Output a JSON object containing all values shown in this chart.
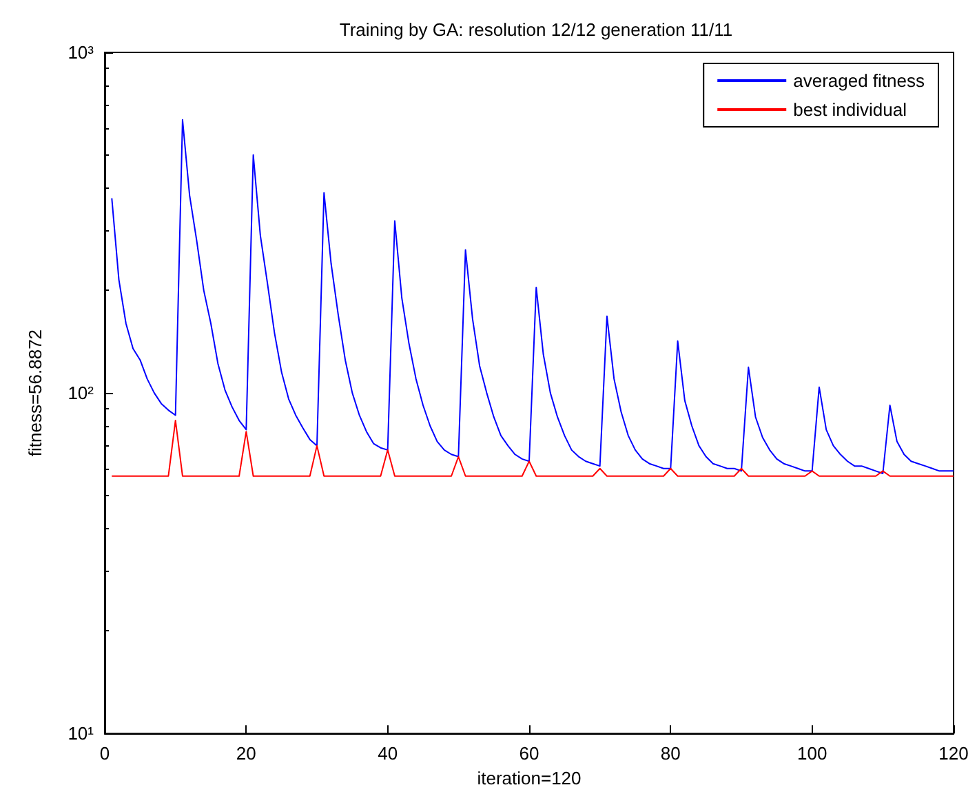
{
  "chart_data": {
    "type": "line",
    "title": "Training by GA: resolution 12/12 generation 11/11",
    "xlabel": "iteration=120",
    "ylabel": "fitness=56.8872",
    "x": [
      1,
      2,
      3,
      4,
      5,
      6,
      7,
      8,
      9,
      10,
      11,
      12,
      13,
      14,
      15,
      16,
      17,
      18,
      19,
      20,
      21,
      22,
      23,
      24,
      25,
      26,
      27,
      28,
      29,
      30,
      31,
      32,
      33,
      34,
      35,
      36,
      37,
      38,
      39,
      40,
      41,
      42,
      43,
      44,
      45,
      46,
      47,
      48,
      49,
      50,
      51,
      52,
      53,
      54,
      55,
      56,
      57,
      58,
      59,
      60,
      61,
      62,
      63,
      64,
      65,
      66,
      67,
      68,
      69,
      70,
      71,
      72,
      73,
      74,
      75,
      76,
      77,
      78,
      79,
      80,
      81,
      82,
      83,
      84,
      85,
      86,
      87,
      88,
      89,
      90,
      91,
      92,
      93,
      94,
      95,
      96,
      97,
      98,
      99,
      100,
      101,
      102,
      103,
      104,
      105,
      106,
      107,
      108,
      109,
      110,
      111,
      112,
      113,
      114,
      115,
      116,
      117,
      118,
      119,
      120
    ],
    "series": [
      {
        "name": "averaged fitness",
        "color": "#0000ff",
        "values": [
          373,
          215,
          160,
          135,
          125,
          110,
          100,
          93,
          89,
          86,
          634,
          380,
          280,
          200,
          160,
          122,
          102,
          91,
          83,
          78,
          500,
          290,
          210,
          150,
          115,
          96,
          86,
          79,
          73,
          70,
          387,
          240,
          170,
          125,
          100,
          86,
          77,
          71,
          69,
          68,
          320,
          190,
          140,
          110,
          92,
          80,
          72,
          68,
          66,
          65,
          263,
          165,
          120,
          100,
          85,
          75,
          70,
          66,
          64,
          63,
          204,
          130,
          100,
          85,
          75,
          68,
          65,
          63,
          62,
          61,
          168,
          110,
          88,
          75,
          68,
          64,
          62,
          61,
          60,
          60,
          142,
          95,
          80,
          70,
          65,
          62,
          61,
          60,
          60,
          59,
          119,
          85,
          74,
          68,
          64,
          62,
          61,
          60,
          59,
          59,
          104,
          78,
          70,
          66,
          63,
          61,
          61,
          60,
          59,
          58,
          92,
          72,
          66,
          63,
          62,
          61,
          60,
          59,
          59,
          59
        ]
      },
      {
        "name": "best individual",
        "color": "#ff0000",
        "values": [
          57,
          57,
          57,
          57,
          57,
          57,
          57,
          57,
          57,
          83,
          57,
          57,
          57,
          57,
          57,
          57,
          57,
          57,
          57,
          77,
          57,
          57,
          57,
          57,
          57,
          57,
          57,
          57,
          57,
          70,
          57,
          57,
          57,
          57,
          57,
          57,
          57,
          57,
          57,
          68,
          57,
          57,
          57,
          57,
          57,
          57,
          57,
          57,
          57,
          65,
          57,
          57,
          57,
          57,
          57,
          57,
          57,
          57,
          57,
          63,
          57,
          57,
          57,
          57,
          57,
          57,
          57,
          57,
          57,
          60,
          57,
          57,
          57,
          57,
          57,
          57,
          57,
          57,
          57,
          60,
          57,
          57,
          57,
          57,
          57,
          57,
          57,
          57,
          57,
          60,
          57,
          57,
          57,
          57,
          57,
          57,
          57,
          57,
          57,
          59,
          57,
          57,
          57,
          57,
          57,
          57,
          57,
          57,
          57,
          59,
          57,
          57,
          57,
          57,
          57,
          57,
          57,
          57,
          57,
          57
        ]
      }
    ],
    "xlim": [
      0,
      120
    ],
    "xticks": [
      0,
      20,
      40,
      60,
      80,
      100,
      120
    ],
    "ylim": [
      10,
      1000
    ],
    "yticks": [
      {
        "value": 10,
        "label": "10¹"
      },
      {
        "value": 100,
        "label": "10²"
      },
      {
        "value": 1000,
        "label": "10³"
      }
    ],
    "log": "y",
    "grid": false,
    "legend": "top right",
    "marker": "none",
    "line_style": "solid"
  }
}
